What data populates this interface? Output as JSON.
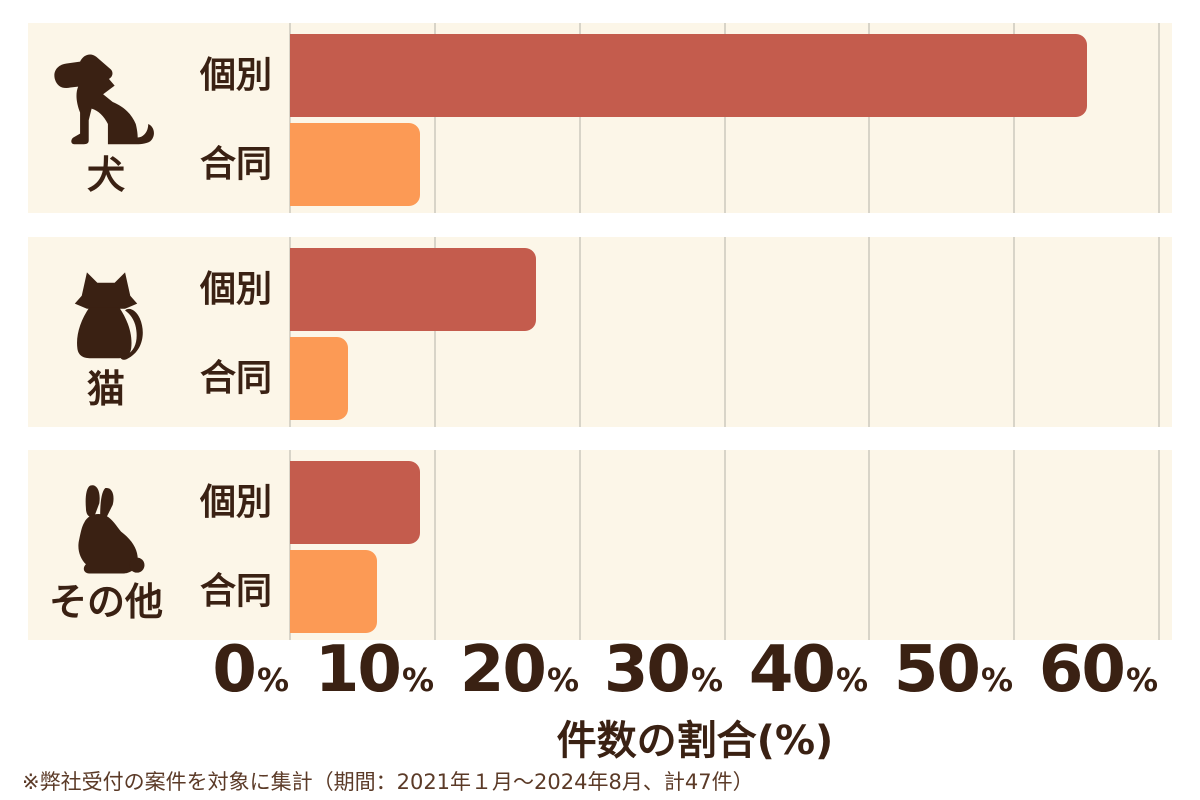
{
  "chart_data": {
    "type": "bar",
    "orientation": "horizontal",
    "categories": [
      "犬",
      "猫",
      "その他"
    ],
    "category_icons": [
      "dog-icon",
      "cat-icon",
      "rabbit-icon"
    ],
    "series": [
      {
        "name": "個別",
        "values": [
          55,
          17,
          9
        ],
        "color": "#c45c4d"
      },
      {
        "name": "合同",
        "values": [
          9,
          4,
          6
        ],
        "color": "#fc9a55"
      }
    ],
    "xlabel": "件数の割合(%)",
    "xlim": [
      0,
      60
    ],
    "x_ticks": [
      0,
      10,
      20,
      30,
      40,
      50,
      60
    ],
    "x_tick_suffix": "%",
    "grid": true,
    "legend_position": "none"
  },
  "footnote": "※弊社受付の案件を対象に集計（期間：2021年１月～2024年8月、計47件）",
  "colors": {
    "page_bg": "#ffffff",
    "panel_bg": "#fcf6e8",
    "gridline": "#d8d4c8",
    "bar_individual": "#c45c4d",
    "bar_joint": "#fc9a55",
    "text_dark": "#3a2113",
    "footnote_text": "#5b3a27"
  }
}
